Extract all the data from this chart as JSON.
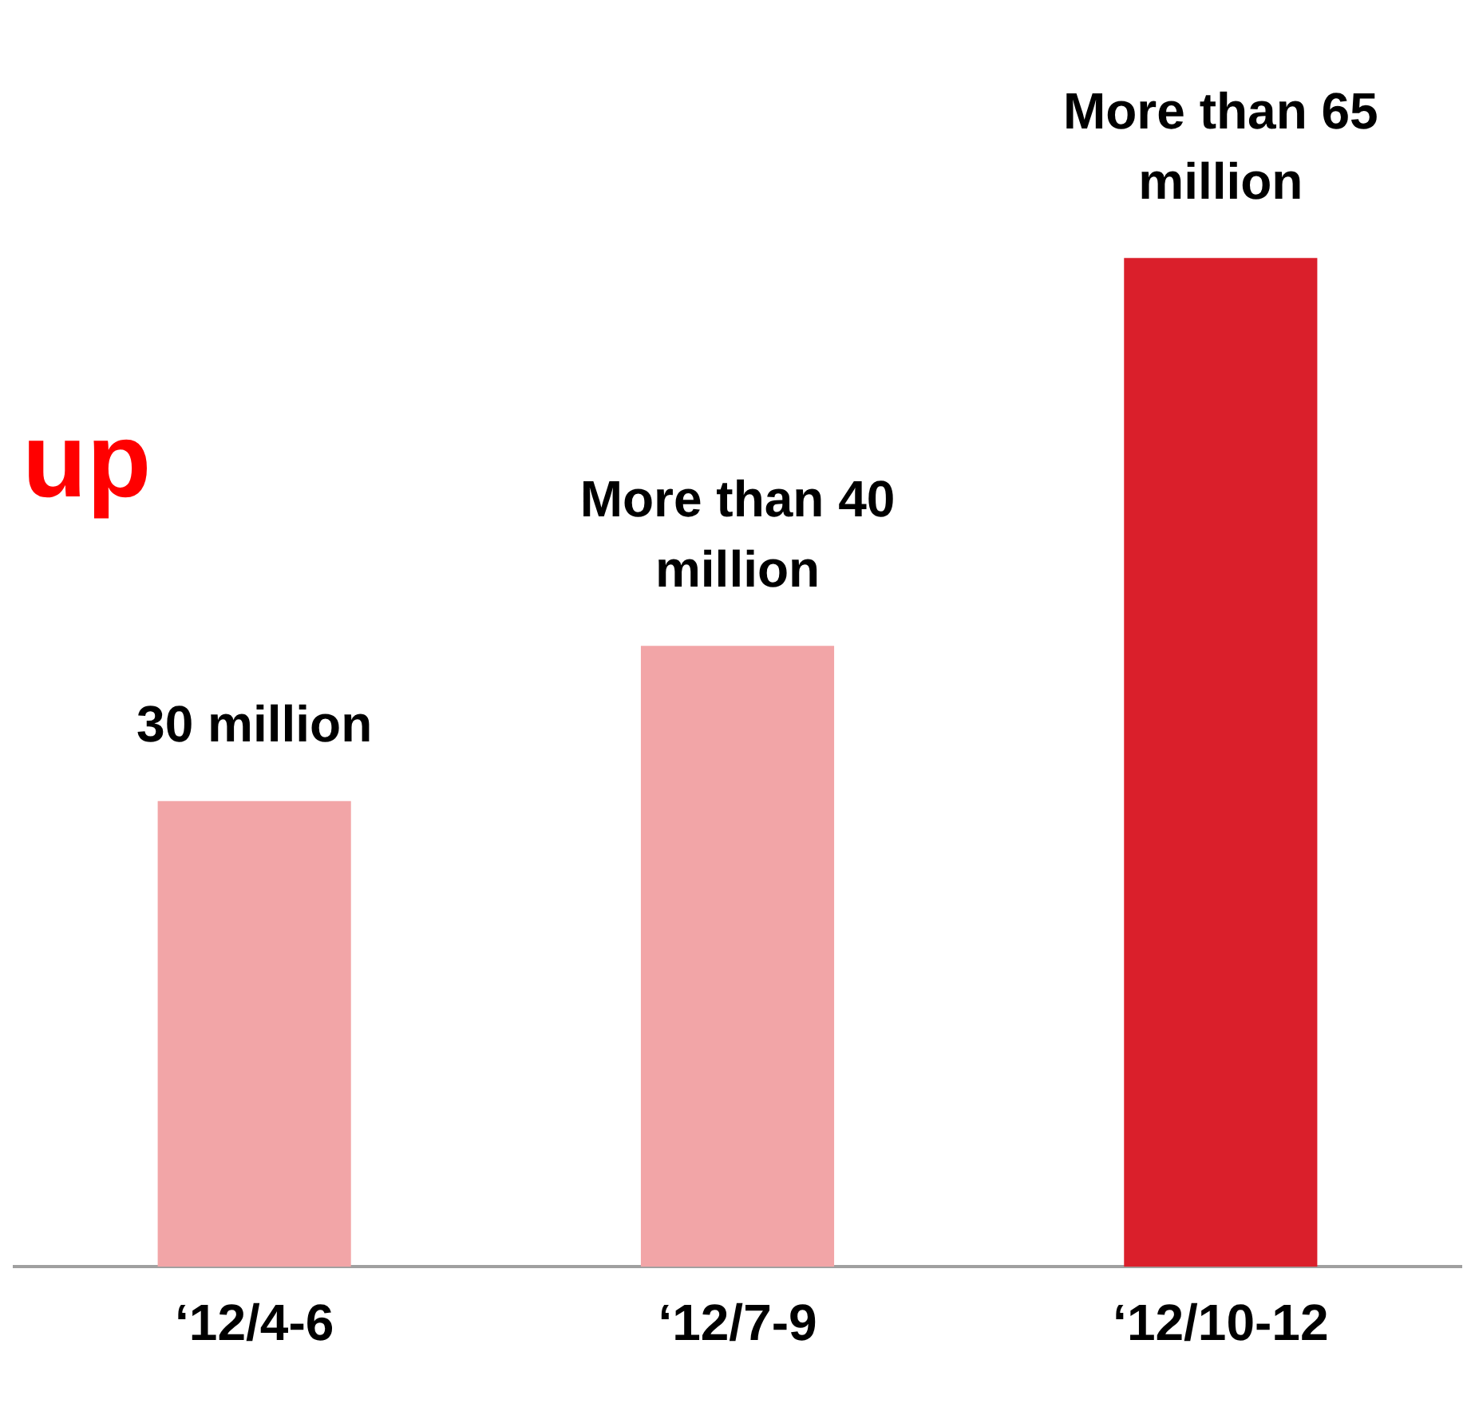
{
  "chart_data": {
    "type": "bar",
    "categories": [
      "‘12/4-6",
      "‘12/7-9",
      "‘12/10-12"
    ],
    "values": [
      30,
      40,
      65
    ],
    "colors": [
      "#f2a5a7",
      "#f2a5a7",
      "#da1f2b"
    ],
    "value_labels": [
      "30 million",
      "More than 40 million",
      "More than 65 million"
    ],
    "annotations": [
      "up"
    ],
    "grid": false,
    "legend": false
  }
}
